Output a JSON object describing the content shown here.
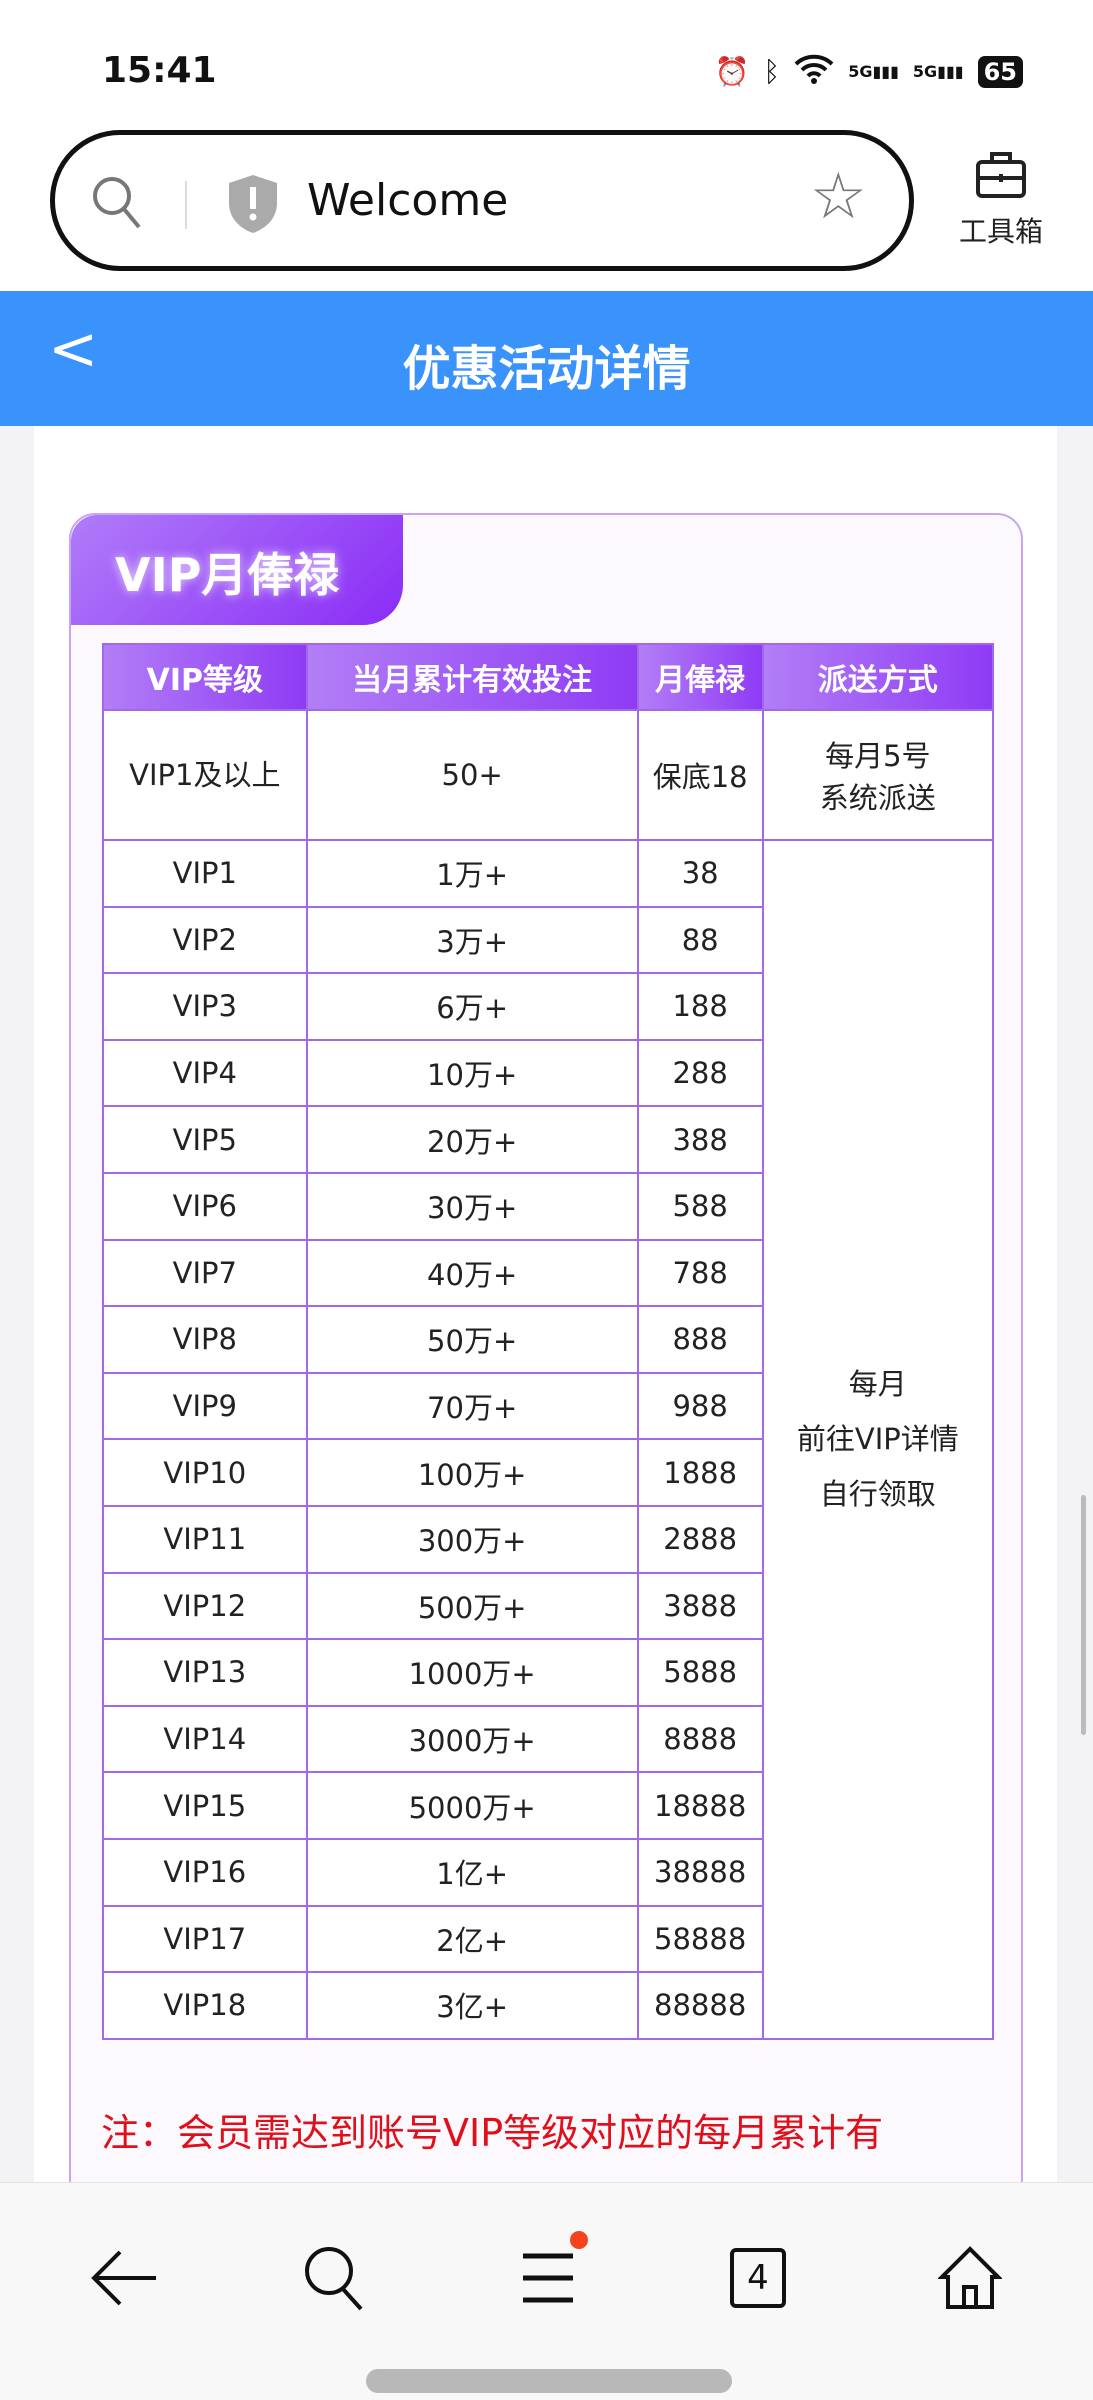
{
  "status": {
    "time": "15:41",
    "battery": "65",
    "network": "5G"
  },
  "browser": {
    "address_title": "Welcome",
    "toolbox_label": "工具箱"
  },
  "header": {
    "title": "优惠活动详情"
  },
  "card": {
    "tab_title": "VIP月俸禄",
    "columns": [
      "VIP等级",
      "当月累计有效投注",
      "月俸禄",
      "派送方式"
    ],
    "first_row": {
      "level": "VIP1及以上",
      "bet": "50+",
      "salary": "保底18",
      "delivery_line1": "每月5号",
      "delivery_line2": "系统派送"
    },
    "rows": [
      {
        "level": "VIP1",
        "bet": "1万+",
        "salary": "38"
      },
      {
        "level": "VIP2",
        "bet": "3万+",
        "salary": "88"
      },
      {
        "level": "VIP3",
        "bet": "6万+",
        "salary": "188"
      },
      {
        "level": "VIP4",
        "bet": "10万+",
        "salary": "288"
      },
      {
        "level": "VIP5",
        "bet": "20万+",
        "salary": "388"
      },
      {
        "level": "VIP6",
        "bet": "30万+",
        "salary": "588"
      },
      {
        "level": "VIP7",
        "bet": "40万+",
        "salary": "788"
      },
      {
        "level": "VIP8",
        "bet": "50万+",
        "salary": "888"
      },
      {
        "level": "VIP9",
        "bet": "70万+",
        "salary": "988"
      },
      {
        "level": "VIP10",
        "bet": "100万+",
        "salary": "1888"
      },
      {
        "level": "VIP11",
        "bet": "300万+",
        "salary": "2888"
      },
      {
        "level": "VIP12",
        "bet": "500万+",
        "salary": "3888"
      },
      {
        "level": "VIP13",
        "bet": "1000万+",
        "salary": "5888"
      },
      {
        "level": "VIP14",
        "bet": "3000万+",
        "salary": "8888"
      },
      {
        "level": "VIP15",
        "bet": "5000万+",
        "salary": "18888"
      },
      {
        "level": "VIP16",
        "bet": "1亿+",
        "salary": "38888"
      },
      {
        "level": "VIP17",
        "bet": "2亿+",
        "salary": "58888"
      },
      {
        "level": "VIP18",
        "bet": "3亿+",
        "salary": "88888"
      }
    ],
    "monthly_delivery": [
      "每月",
      "前往VIP详情",
      "自行领取"
    ],
    "note": "注：会员需达到账号VIP等级对应的每月累计有"
  },
  "bottom_nav": {
    "tab_count": "4"
  },
  "colors": {
    "accent": "#3a92fb",
    "purple": "#8a2cf6",
    "note": "#e0101a"
  }
}
